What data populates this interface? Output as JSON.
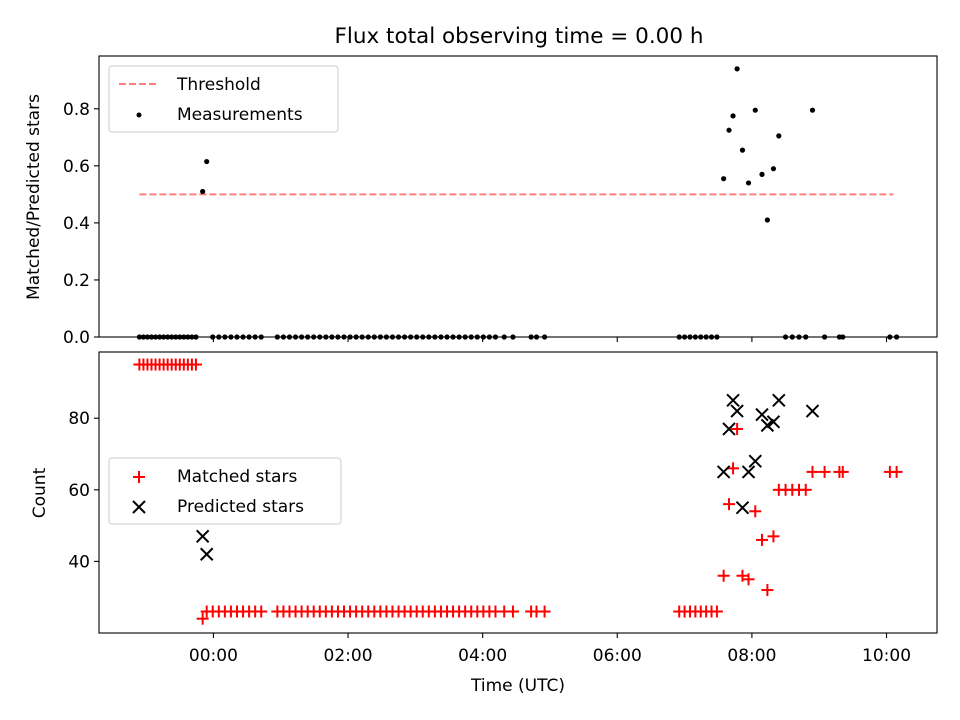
{
  "figure_title": "Flux total observing time = 0.00 h",
  "chart_data": [
    {
      "type": "scatter",
      "title": "Flux total observing time = 0.00 h",
      "xlabel": "",
      "ylabel": "Matched/Predicted stars",
      "x_unit": "hours (UTC, 0 = 00:00)",
      "xlim": [
        -1.7,
        10.75
      ],
      "ylim": [
        0.0,
        0.985
      ],
      "yticks": [
        0.0,
        0.2,
        0.4,
        0.6,
        0.8
      ],
      "ytick_labels": [
        "0.0",
        "0.2",
        "0.4",
        "0.6",
        "0.8"
      ],
      "grid": false,
      "legend_position": "upper left",
      "threshold": {
        "name": "Threshold",
        "y": 0.5,
        "x_range": [
          -1.1,
          10.1
        ],
        "color": "#ff7f7f",
        "style": "dashed"
      },
      "series": [
        {
          "name": "Measurements",
          "color": "#000000",
          "marker": "dot",
          "points": [
            [
              -1.1,
              0
            ],
            [
              -1.04,
              0
            ],
            [
              -0.98,
              0
            ],
            [
              -0.92,
              0
            ],
            [
              -0.86,
              0
            ],
            [
              -0.8,
              0
            ],
            [
              -0.74,
              0
            ],
            [
              -0.68,
              0
            ],
            [
              -0.62,
              0
            ],
            [
              -0.56,
              0
            ],
            [
              -0.5,
              0
            ],
            [
              -0.44,
              0
            ],
            [
              -0.38,
              0
            ],
            [
              -0.32,
              0
            ],
            [
              -0.26,
              0
            ],
            [
              -0.16,
              0.51
            ],
            [
              -0.1,
              0.615
            ],
            [
              -0.01,
              0
            ],
            [
              0.08,
              0
            ],
            [
              0.17,
              0
            ],
            [
              0.26,
              0
            ],
            [
              0.35,
              0
            ],
            [
              0.44,
              0
            ],
            [
              0.53,
              0
            ],
            [
              0.62,
              0
            ],
            [
              0.71,
              0
            ],
            [
              0.95,
              0
            ],
            [
              1.04,
              0
            ],
            [
              1.13,
              0
            ],
            [
              1.22,
              0
            ],
            [
              1.31,
              0
            ],
            [
              1.4,
              0
            ],
            [
              1.49,
              0
            ],
            [
              1.58,
              0
            ],
            [
              1.67,
              0
            ],
            [
              1.76,
              0
            ],
            [
              1.85,
              0
            ],
            [
              1.94,
              0
            ],
            [
              2.03,
              0
            ],
            [
              2.12,
              0
            ],
            [
              2.21,
              0
            ],
            [
              2.3,
              0
            ],
            [
              2.39,
              0
            ],
            [
              2.48,
              0
            ],
            [
              2.57,
              0
            ],
            [
              2.66,
              0
            ],
            [
              2.75,
              0
            ],
            [
              2.84,
              0
            ],
            [
              2.93,
              0
            ],
            [
              3.02,
              0
            ],
            [
              3.11,
              0
            ],
            [
              3.2,
              0
            ],
            [
              3.29,
              0
            ],
            [
              3.38,
              0
            ],
            [
              3.47,
              0
            ],
            [
              3.56,
              0
            ],
            [
              3.65,
              0
            ],
            [
              3.74,
              0
            ],
            [
              3.83,
              0
            ],
            [
              3.92,
              0
            ],
            [
              4.01,
              0
            ],
            [
              4.1,
              0
            ],
            [
              4.19,
              0
            ],
            [
              4.32,
              0
            ],
            [
              4.45,
              0
            ],
            [
              4.72,
              0
            ],
            [
              4.8,
              0
            ],
            [
              4.92,
              0
            ],
            [
              6.92,
              0
            ],
            [
              7.0,
              0
            ],
            [
              7.08,
              0
            ],
            [
              7.16,
              0
            ],
            [
              7.24,
              0
            ],
            [
              7.32,
              0
            ],
            [
              7.4,
              0
            ],
            [
              7.48,
              0
            ],
            [
              7.58,
              0.555
            ],
            [
              7.66,
              0.725
            ],
            [
              7.72,
              0.775
            ],
            [
              7.78,
              0.94
            ],
            [
              7.86,
              0.655
            ],
            [
              7.95,
              0.54
            ],
            [
              8.05,
              0.795
            ],
            [
              8.15,
              0.57
            ],
            [
              8.23,
              0.41
            ],
            [
              8.32,
              0.59
            ],
            [
              8.4,
              0.705
            ],
            [
              8.5,
              0
            ],
            [
              8.6,
              0
            ],
            [
              8.7,
              0
            ],
            [
              8.8,
              0
            ],
            [
              8.9,
              0.795
            ],
            [
              9.08,
              0
            ],
            [
              9.3,
              0
            ],
            [
              9.35,
              0
            ],
            [
              10.05,
              0
            ],
            [
              10.15,
              0
            ]
          ]
        }
      ]
    },
    {
      "type": "scatter",
      "title": "",
      "xlabel": "Time (UTC)",
      "ylabel": "Count",
      "x_unit": "hours (UTC, 0 = 00:00)",
      "xlim": [
        -1.7,
        10.75
      ],
      "ylim": [
        20.0,
        98.5
      ],
      "yticks": [
        40,
        60,
        80
      ],
      "ytick_labels": [
        "40",
        "60",
        "80"
      ],
      "xticks": [
        0,
        2,
        4,
        6,
        8,
        10
      ],
      "xtick_labels": [
        "00:00",
        "02:00",
        "04:00",
        "06:00",
        "08:00",
        "10:00"
      ],
      "grid": false,
      "legend_position": "center left",
      "series": [
        {
          "name": "Matched stars",
          "color": "#ff0000",
          "marker": "plus",
          "points": [
            [
              -1.1,
              95
            ],
            [
              -1.04,
              95
            ],
            [
              -0.98,
              95
            ],
            [
              -0.92,
              95
            ],
            [
              -0.86,
              95
            ],
            [
              -0.8,
              95
            ],
            [
              -0.74,
              95
            ],
            [
              -0.68,
              95
            ],
            [
              -0.62,
              95
            ],
            [
              -0.56,
              95
            ],
            [
              -0.5,
              95
            ],
            [
              -0.44,
              95
            ],
            [
              -0.38,
              95
            ],
            [
              -0.32,
              95
            ],
            [
              -0.26,
              95
            ],
            [
              -0.16,
              24
            ],
            [
              -0.1,
              26
            ],
            [
              -0.01,
              26
            ],
            [
              0.08,
              26
            ],
            [
              0.17,
              26
            ],
            [
              0.26,
              26
            ],
            [
              0.35,
              26
            ],
            [
              0.44,
              26
            ],
            [
              0.53,
              26
            ],
            [
              0.62,
              26
            ],
            [
              0.71,
              26
            ],
            [
              0.95,
              26
            ],
            [
              1.04,
              26
            ],
            [
              1.13,
              26
            ],
            [
              1.22,
              26
            ],
            [
              1.31,
              26
            ],
            [
              1.4,
              26
            ],
            [
              1.49,
              26
            ],
            [
              1.58,
              26
            ],
            [
              1.67,
              26
            ],
            [
              1.76,
              26
            ],
            [
              1.85,
              26
            ],
            [
              1.94,
              26
            ],
            [
              2.03,
              26
            ],
            [
              2.12,
              26
            ],
            [
              2.21,
              26
            ],
            [
              2.3,
              26
            ],
            [
              2.39,
              26
            ],
            [
              2.48,
              26
            ],
            [
              2.57,
              26
            ],
            [
              2.66,
              26
            ],
            [
              2.75,
              26
            ],
            [
              2.84,
              26
            ],
            [
              2.93,
              26
            ],
            [
              3.02,
              26
            ],
            [
              3.11,
              26
            ],
            [
              3.2,
              26
            ],
            [
              3.29,
              26
            ],
            [
              3.38,
              26
            ],
            [
              3.47,
              26
            ],
            [
              3.56,
              26
            ],
            [
              3.65,
              26
            ],
            [
              3.74,
              26
            ],
            [
              3.83,
              26
            ],
            [
              3.92,
              26
            ],
            [
              4.01,
              26
            ],
            [
              4.1,
              26
            ],
            [
              4.19,
              26
            ],
            [
              4.32,
              26
            ],
            [
              4.45,
              26
            ],
            [
              4.72,
              26
            ],
            [
              4.8,
              26
            ],
            [
              4.92,
              26
            ],
            [
              6.92,
              26
            ],
            [
              7.0,
              26
            ],
            [
              7.08,
              26
            ],
            [
              7.16,
              26
            ],
            [
              7.24,
              26
            ],
            [
              7.32,
              26
            ],
            [
              7.4,
              26
            ],
            [
              7.48,
              26
            ],
            [
              7.58,
              36
            ],
            [
              7.66,
              56
            ],
            [
              7.72,
              66
            ],
            [
              7.78,
              77
            ],
            [
              7.86,
              36
            ],
            [
              7.95,
              35
            ],
            [
              8.05,
              54
            ],
            [
              8.15,
              46
            ],
            [
              8.23,
              32
            ],
            [
              8.32,
              47
            ],
            [
              8.4,
              60
            ],
            [
              8.5,
              60
            ],
            [
              8.6,
              60
            ],
            [
              8.7,
              60
            ],
            [
              8.8,
              60
            ],
            [
              8.9,
              65
            ],
            [
              9.08,
              65
            ],
            [
              9.3,
              65
            ],
            [
              9.35,
              65
            ],
            [
              10.05,
              65
            ],
            [
              10.15,
              65
            ]
          ]
        },
        {
          "name": "Predicted stars",
          "color": "#000000",
          "marker": "x",
          "points": [
            [
              -0.16,
              47
            ],
            [
              -0.1,
              42
            ],
            [
              7.58,
              65
            ],
            [
              7.66,
              77
            ],
            [
              7.72,
              85
            ],
            [
              7.78,
              82
            ],
            [
              7.86,
              55
            ],
            [
              7.95,
              65
            ],
            [
              8.05,
              68
            ],
            [
              8.15,
              81
            ],
            [
              8.23,
              78
            ],
            [
              8.32,
              79
            ],
            [
              8.4,
              85
            ],
            [
              8.9,
              82
            ]
          ]
        }
      ]
    }
  ]
}
